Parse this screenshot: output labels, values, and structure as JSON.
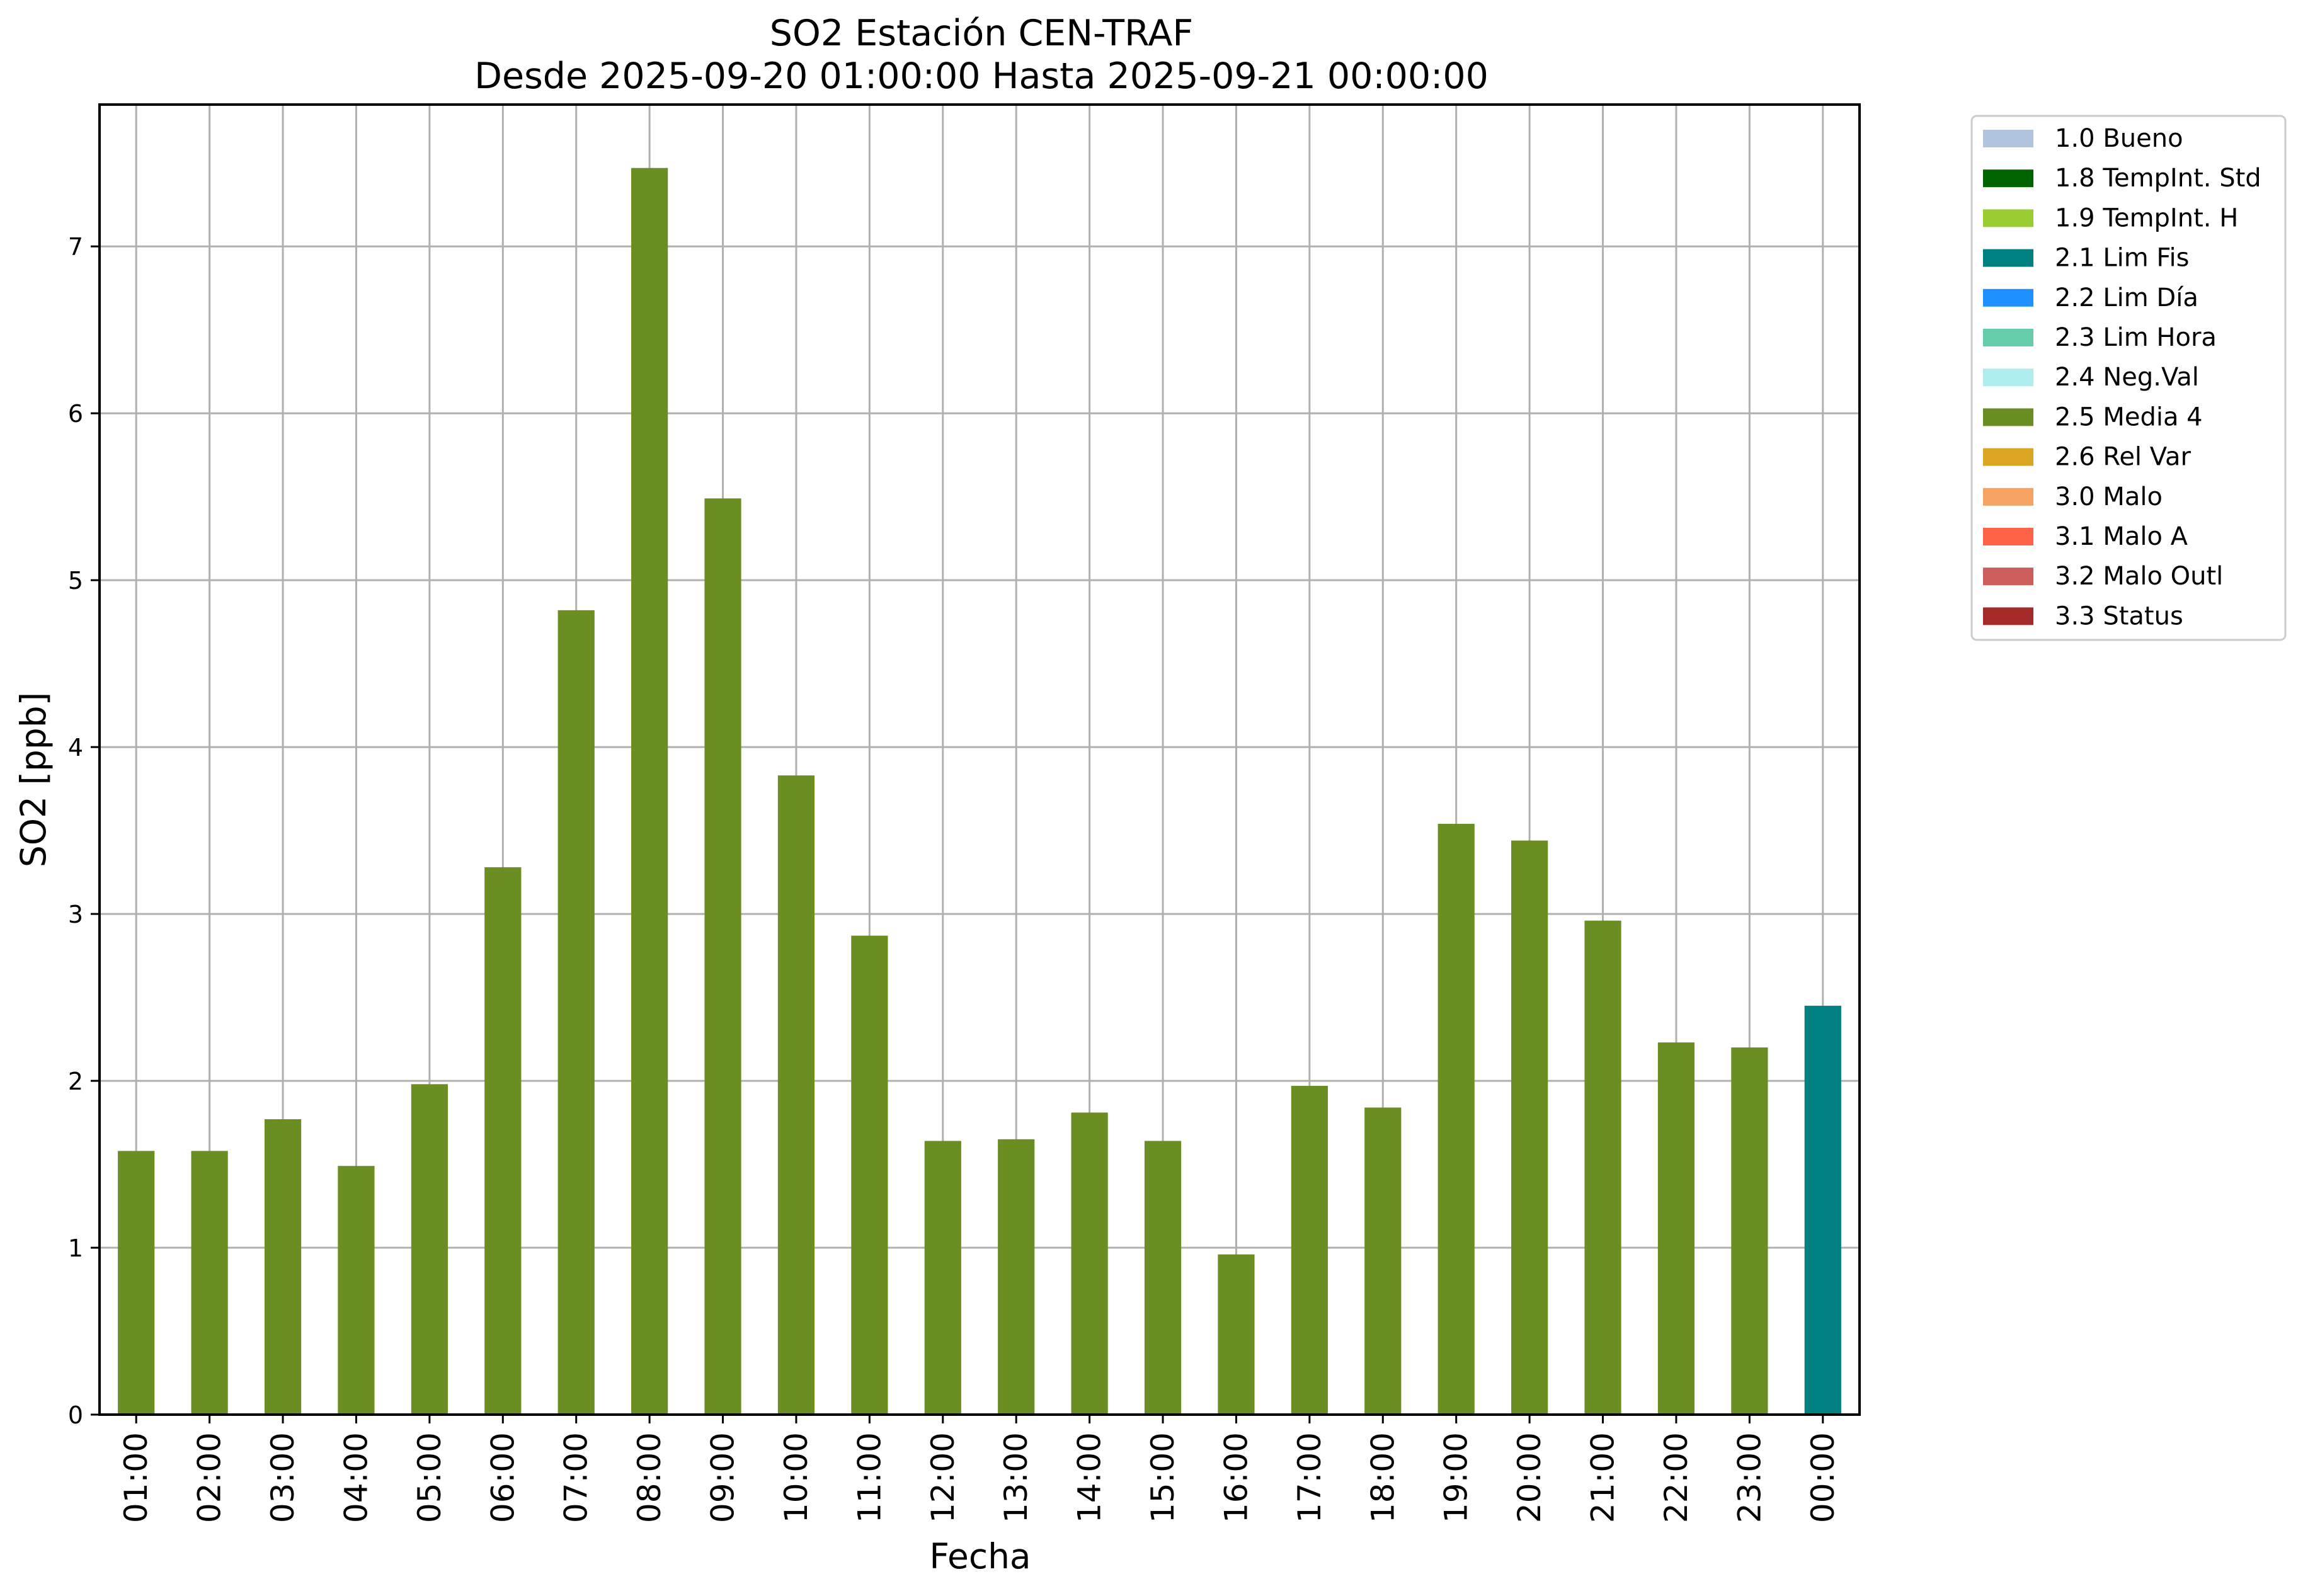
{
  "chart_data": {
    "type": "bar",
    "title": "SO2 Estación CEN-TRAF",
    "subtitle": "Desde 2025-09-20 01:00:00 Hasta 2025-09-21 00:00:00",
    "xlabel": "Fecha",
    "ylabel": "SO2 [ppb]",
    "ylim": [
      0,
      7.85
    ],
    "yticks": [
      "0",
      "1",
      "2",
      "3",
      "4",
      "5",
      "6",
      "7"
    ],
    "grid": true,
    "legend_position": "outside-top-right",
    "categories": [
      "01:00",
      "02:00",
      "03:00",
      "04:00",
      "05:00",
      "06:00",
      "07:00",
      "08:00",
      "09:00",
      "10:00",
      "11:00",
      "12:00",
      "13:00",
      "14:00",
      "15:00",
      "16:00",
      "17:00",
      "18:00",
      "19:00",
      "20:00",
      "21:00",
      "22:00",
      "23:00",
      "00:00"
    ],
    "values": [
      1.58,
      1.58,
      1.77,
      1.49,
      1.98,
      3.28,
      4.82,
      7.47,
      5.49,
      3.83,
      2.87,
      1.64,
      1.65,
      1.81,
      1.64,
      0.96,
      1.97,
      1.84,
      3.54,
      3.44,
      2.96,
      2.23,
      2.2,
      2.45
    ],
    "bar_flags": [
      "2.5 Media 4",
      "2.5 Media 4",
      "2.5 Media 4",
      "2.5 Media 4",
      "2.5 Media 4",
      "2.5 Media 4",
      "2.5 Media 4",
      "2.5 Media 4",
      "2.5 Media 4",
      "2.5 Media 4",
      "2.5 Media 4",
      "2.5 Media 4",
      "2.5 Media 4",
      "2.5 Media 4",
      "2.5 Media 4",
      "2.5 Media 4",
      "2.5 Media 4",
      "2.5 Media 4",
      "2.5 Media 4",
      "2.5 Media 4",
      "2.5 Media 4",
      "2.5 Media 4",
      "2.5 Media 4",
      "2.1 Lim Fis"
    ],
    "legend": [
      {
        "label": "1.0 Bueno",
        "color": "#b0c4de"
      },
      {
        "label": "1.8 TempInt. Std",
        "color": "#006400"
      },
      {
        "label": "1.9 TempInt. H",
        "color": "#9acd32"
      },
      {
        "label": "2.1 Lim Fis",
        "color": "#008080"
      },
      {
        "label": "2.2 Lim Día",
        "color": "#1e90ff"
      },
      {
        "label": "2.3 Lim Hora",
        "color": "#66cdaa"
      },
      {
        "label": "2.4 Neg.Val",
        "color": "#afeeee"
      },
      {
        "label": "2.5 Media 4",
        "color": "#6b8e23"
      },
      {
        "label": "2.6 Rel Var",
        "color": "#daa520"
      },
      {
        "label": "3.0 Malo",
        "color": "#f4a460"
      },
      {
        "label": "3.1 Malo A",
        "color": "#ff6347"
      },
      {
        "label": "3.2 Malo Outl",
        "color": "#cd5c5c"
      },
      {
        "label": "3.3 Status",
        "color": "#a52a2a"
      }
    ]
  }
}
